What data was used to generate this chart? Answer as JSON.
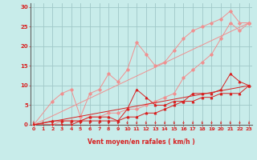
{
  "background_color": "#c8ecea",
  "grid_color": "#a0c8c8",
  "line_color_light": "#f09090",
  "line_color_dark": "#d82020",
  "arrow_color": "#d82020",
  "xlabel": "Vent moyen/en rafales ( km/h )",
  "xlabel_color": "#d82020",
  "tick_color": "#d82020",
  "ylabel_ticks": [
    0,
    5,
    10,
    15,
    20,
    25,
    30
  ],
  "xlabel_ticks": [
    0,
    1,
    2,
    3,
    4,
    5,
    6,
    7,
    8,
    9,
    10,
    11,
    12,
    13,
    14,
    15,
    16,
    17,
    18,
    19,
    20,
    21,
    22,
    23
  ],
  "xlim": [
    -0.3,
    23.3
  ],
  "ylim": [
    0,
    31
  ],
  "lines_light": [
    {
      "x": [
        0,
        2,
        3,
        4,
        5,
        6,
        7,
        8,
        9,
        10,
        11,
        12,
        13,
        14,
        15,
        16,
        17,
        18,
        19,
        20,
        21,
        22,
        23
      ],
      "y": [
        0,
        6,
        8,
        9,
        2,
        8,
        9,
        13,
        11,
        14,
        21,
        18,
        15,
        16,
        19,
        22,
        24,
        25,
        26,
        27,
        29,
        26,
        26
      ]
    },
    {
      "x": [
        0,
        2,
        3,
        4,
        5,
        6,
        7,
        8,
        9,
        10,
        11,
        12,
        13,
        14,
        15,
        16,
        17,
        18,
        19,
        20,
        21,
        22,
        23
      ],
      "y": [
        0,
        0,
        1,
        1,
        1,
        2,
        2,
        3,
        3,
        4,
        4,
        5,
        6,
        7,
        8,
        12,
        14,
        16,
        18,
        22,
        26,
        24,
        26
      ]
    },
    {
      "x": [
        0,
        23
      ],
      "y": [
        0,
        26
      ]
    }
  ],
  "lines_dark": [
    {
      "x": [
        0,
        2,
        3,
        4,
        5,
        6,
        7,
        8,
        9,
        10,
        11,
        12,
        13,
        14,
        15,
        16,
        17,
        18,
        19,
        20,
        21,
        22,
        23
      ],
      "y": [
        0,
        1,
        1,
        1,
        1,
        2,
        2,
        2,
        1,
        4,
        9,
        7,
        5,
        5,
        6,
        6,
        8,
        8,
        8,
        9,
        13,
        11,
        10
      ]
    },
    {
      "x": [
        0,
        2,
        3,
        4,
        5,
        6,
        7,
        8,
        9,
        10,
        11,
        12,
        13,
        14,
        15,
        16,
        17,
        18,
        19,
        20,
        21,
        22,
        23
      ],
      "y": [
        0,
        0,
        0,
        0,
        1,
        1,
        1,
        1,
        1,
        2,
        2,
        3,
        3,
        4,
        5,
        6,
        6,
        7,
        7,
        8,
        8,
        8,
        10
      ]
    },
    {
      "x": [
        0,
        23
      ],
      "y": [
        0,
        10
      ]
    }
  ],
  "arrows_x": [
    0,
    1,
    2,
    3,
    4,
    5,
    6,
    7,
    8,
    9,
    10,
    11,
    12,
    13,
    14,
    15,
    16,
    17,
    18,
    19,
    20,
    21,
    22,
    23
  ]
}
